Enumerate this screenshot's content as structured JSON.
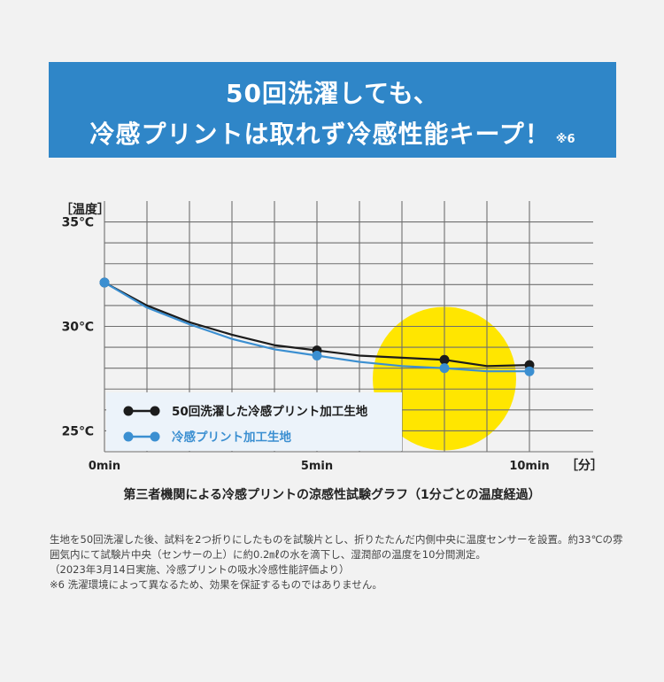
{
  "banner": {
    "line1": "50回洗濯しても、",
    "line2": "冷感プリントは取れず冷感性能キープ！",
    "note": "※6"
  },
  "chart_data": {
    "type": "line",
    "ylabel": "［温度］",
    "xlabel": "［分］",
    "y_ticks": [
      {
        "value": 35,
        "label": "35℃"
      },
      {
        "value": 30,
        "label": "30℃"
      },
      {
        "value": 25,
        "label": "25℃"
      }
    ],
    "x_ticks": [
      {
        "value": 0,
        "label": "0min"
      },
      {
        "value": 5,
        "label": "5min"
      },
      {
        "value": 10,
        "label": "10min"
      }
    ],
    "xlim": [
      0,
      11.5
    ],
    "ylim": [
      24,
      36
    ],
    "grid": true,
    "highlight": {
      "x": 8,
      "y": 27.5,
      "color": "#ffe600"
    },
    "series": [
      {
        "name": "50回洗濯した冷感プリント加工生地",
        "color": "#1c1c1c",
        "x": [
          0,
          1,
          2,
          3,
          4,
          5,
          6,
          7,
          8,
          9,
          10
        ],
        "y": [
          32.1,
          31.0,
          30.2,
          29.6,
          29.1,
          28.85,
          28.6,
          28.5,
          28.4,
          28.1,
          28.15
        ],
        "marker_x": [
          0,
          5,
          8,
          10
        ]
      },
      {
        "name": "冷感プリント加工生地",
        "color": "#3b8fd1",
        "x": [
          0,
          1,
          2,
          3,
          4,
          5,
          6,
          7,
          8,
          9,
          10
        ],
        "y": [
          32.1,
          30.9,
          30.1,
          29.4,
          28.9,
          28.6,
          28.3,
          28.1,
          28.0,
          27.85,
          27.85
        ],
        "marker_x": [
          0,
          5,
          8,
          10
        ]
      }
    ],
    "legend_placement": "bottom-left"
  },
  "caption": "第三者機関による冷感プリントの涼感性試験グラフ（1分ごとの温度経過）",
  "notes": [
    "生地を50回洗濯した後、試料を2つ折りにしたものを試験片とし、折りたたんだ内側中央に温度センサーを設置。約33℃の雰囲気内にて試験片中央（センサーの上）に約0.2㎖の水を滴下し、湿潤部の温度を10分間測定。",
    "（2023年3月14日実施、冷感プリントの吸水冷感性能評価より）",
    "※6 洗濯環境によって異なるため、効果を保証するものではありません。"
  ]
}
